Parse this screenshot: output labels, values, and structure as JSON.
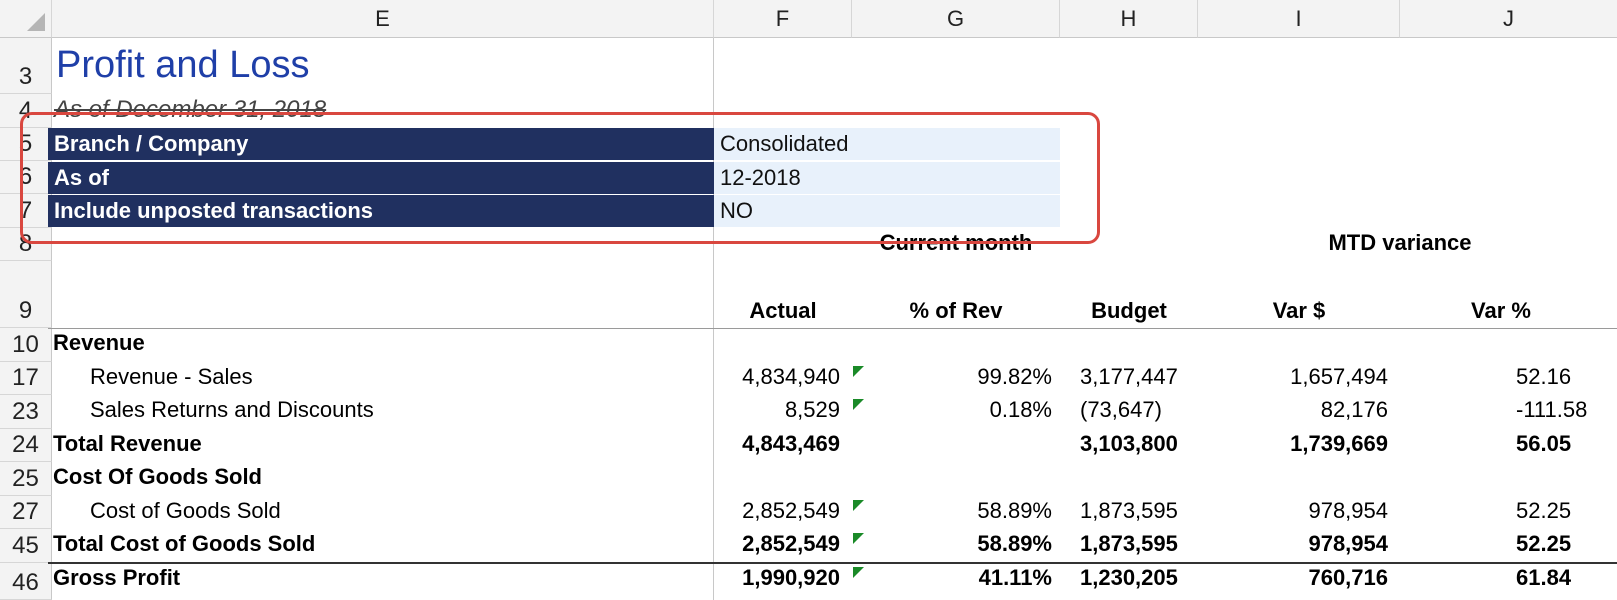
{
  "columns": [
    "E",
    "F",
    "G",
    "H",
    "I",
    "J"
  ],
  "row_numbers": [
    "3",
    "4",
    "5",
    "6",
    "7",
    "8",
    "9",
    "10",
    "17",
    "23",
    "24",
    "25",
    "27",
    "45",
    "46"
  ],
  "report": {
    "title": "Profit and Loss",
    "subtitle": "As of December 31, 2018"
  },
  "params": [
    {
      "label": "Branch / Company",
      "value": "Consolidated"
    },
    {
      "label": "As of",
      "value": "12-2018"
    },
    {
      "label": "Include unposted transactions",
      "value": "NO"
    }
  ],
  "group_headers": {
    "current_month": "Current month",
    "mtd_variance": "MTD variance"
  },
  "col_headers": {
    "actual": "Actual",
    "pct_rev": "% of Rev",
    "budget": "Budget",
    "var_amt": "Var $",
    "var_pct": "Var %"
  },
  "rows": [
    {
      "label": "Revenue",
      "bold": true,
      "indent": false,
      "actual": "",
      "pct": "",
      "budget": "",
      "var": "",
      "varpct": "",
      "flag": false
    },
    {
      "label": "Revenue - Sales",
      "bold": false,
      "indent": true,
      "actual": "4,834,940",
      "pct": "99.82%",
      "budget": "3,177,447",
      "var": "1,657,494",
      "varpct": "52.16",
      "flag": true
    },
    {
      "label": "Sales Returns and Discounts",
      "bold": false,
      "indent": true,
      "actual": "8,529",
      "pct": "0.18%",
      "budget": "(73,647)",
      "var": "82,176",
      "varpct": "-111.58",
      "flag": true
    },
    {
      "label": "Total Revenue",
      "bold": true,
      "indent": false,
      "actual": "4,843,469",
      "pct": "",
      "budget": "3,103,800",
      "var": "1,739,669",
      "varpct": "56.05",
      "flag": false
    },
    {
      "label": "Cost Of Goods Sold",
      "bold": true,
      "indent": false,
      "actual": "",
      "pct": "",
      "budget": "",
      "var": "",
      "varpct": "",
      "flag": false
    },
    {
      "label": "Cost of Goods Sold",
      "bold": false,
      "indent": true,
      "actual": "2,852,549",
      "pct": "58.89%",
      "budget": "1,873,595",
      "var": "978,954",
      "varpct": "52.25",
      "flag": true
    },
    {
      "label": "Total Cost of Goods Sold",
      "bold": true,
      "indent": false,
      "actual": "2,852,549",
      "pct": "58.89%",
      "budget": "1,873,595",
      "var": "978,954",
      "varpct": "52.25",
      "flag": true
    },
    {
      "label": "Gross Profit",
      "bold": true,
      "indent": false,
      "actual": "1,990,920",
      "pct": "41.11%",
      "budget": "1,230,205",
      "var": "760,716",
      "varpct": "61.84",
      "flag": true
    }
  ]
}
